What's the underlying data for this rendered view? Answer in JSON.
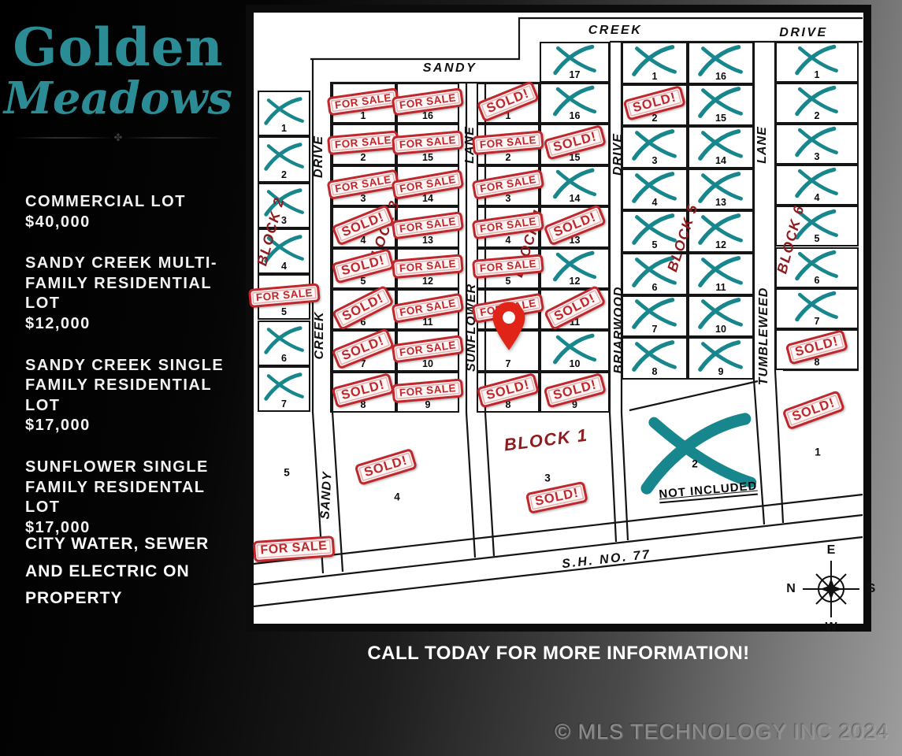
{
  "sidebar": {
    "logo_line1": "Golden",
    "logo_line2": "Meadows",
    "divider_ornament": "✤",
    "listings": [
      {
        "title": "COMMERCIAL LOT",
        "price": "$40,000"
      },
      {
        "title": "SANDY CREEK MULTI-FAMILY RESIDENTIAL LOT",
        "price": "$12,000"
      },
      {
        "title": "SANDY CREEK SINGLE FAMILY RESIDENTIAL LOT",
        "price": "$17,000"
      },
      {
        "title": "SUNFLOWER SINGLE FAMILY RESIDENTAL LOT",
        "price": "$17,000"
      }
    ],
    "utilities_note": "CITY WATER, SEWER AND ELECTRIC ON PROPERTY"
  },
  "map": {
    "stamp_labels": {
      "forsale": "FOR SALE",
      "sold": "SOLD!"
    },
    "roads": {
      "top": [
        "SANDY",
        "CREEK",
        "DRIVE"
      ],
      "sandy_creek_drive": [
        "DRIVE",
        "CREEK",
        "SANDY"
      ],
      "sunflower_lane": [
        "LANE",
        "SUNFLOWER"
      ],
      "briarwood_drive": [
        "DRIVE",
        "BRIARWOOD"
      ],
      "tumbleweed_lane": [
        "LANE",
        "TUMBLEWEED"
      ],
      "highway": "S.H. NO. 77"
    },
    "compass": {
      "top": "E",
      "left": "N",
      "right": "S",
      "bottom": "W"
    },
    "blocks": {
      "block1": {
        "label": "BLOCK 1"
      },
      "block2": {
        "label": "BLOCK 2",
        "lots": [
          {
            "n": "1",
            "s": "x"
          },
          {
            "n": "2",
            "s": "x"
          },
          {
            "n": "3",
            "s": "x"
          },
          {
            "n": "4",
            "s": "x"
          },
          {
            "n": "5",
            "s": "forsale"
          },
          {
            "n": "6",
            "s": "x"
          },
          {
            "n": "7",
            "s": "x"
          }
        ]
      },
      "block3": {
        "label": "BLOCK 3",
        "col_a": [
          {
            "n": "1",
            "s": "forsale"
          },
          {
            "n": "2",
            "s": "forsale"
          },
          {
            "n": "3",
            "s": "forsale"
          },
          {
            "n": "4",
            "s": "sold"
          },
          {
            "n": "5",
            "s": "sold"
          },
          {
            "n": "6",
            "s": "sold"
          },
          {
            "n": "7",
            "s": "sold"
          },
          {
            "n": "8",
            "s": "sold"
          }
        ],
        "col_b": [
          {
            "n": "16",
            "s": "forsale"
          },
          {
            "n": "15",
            "s": "forsale"
          },
          {
            "n": "14",
            "s": "forsale"
          },
          {
            "n": "13",
            "s": "forsale"
          },
          {
            "n": "12",
            "s": "forsale"
          },
          {
            "n": "11",
            "s": "forsale"
          },
          {
            "n": "10",
            "s": "forsale"
          },
          {
            "n": "9",
            "s": "forsale"
          }
        ]
      },
      "block4": {
        "label": "BLOCK 4",
        "top_lot": {
          "n": "17",
          "s": "x"
        },
        "col_a": [
          {
            "n": "1",
            "s": "sold"
          },
          {
            "n": "2",
            "s": "forsale"
          },
          {
            "n": "3",
            "s": "forsale"
          },
          {
            "n": "4",
            "s": "forsale"
          },
          {
            "n": "5",
            "s": "forsale"
          },
          {
            "n": "6",
            "s": "forsale"
          },
          {
            "n": "7",
            "s": "pin"
          },
          {
            "n": "8",
            "s": "sold"
          }
        ],
        "col_b": [
          {
            "n": "16",
            "s": "x"
          },
          {
            "n": "15",
            "s": "sold"
          },
          {
            "n": "14",
            "s": "x"
          },
          {
            "n": "13",
            "s": "sold"
          },
          {
            "n": "12",
            "s": "x"
          },
          {
            "n": "11",
            "s": "sold"
          },
          {
            "n": "10",
            "s": "x"
          },
          {
            "n": "9",
            "s": "sold"
          }
        ]
      },
      "block5": {
        "label": "BLOCK 5",
        "col_a": [
          {
            "n": "1",
            "s": "x"
          },
          {
            "n": "2",
            "s": "sold"
          },
          {
            "n": "3",
            "s": "x"
          },
          {
            "n": "4",
            "s": "x"
          },
          {
            "n": "5",
            "s": "x"
          },
          {
            "n": "6",
            "s": "x"
          },
          {
            "n": "7",
            "s": "x"
          },
          {
            "n": "8",
            "s": "x"
          }
        ],
        "col_b": [
          {
            "n": "16",
            "s": "x"
          },
          {
            "n": "15",
            "s": "x"
          },
          {
            "n": "14",
            "s": "x"
          },
          {
            "n": "13",
            "s": "x"
          },
          {
            "n": "12",
            "s": "x"
          },
          {
            "n": "11",
            "s": "x"
          },
          {
            "n": "10",
            "s": "x"
          },
          {
            "n": "9",
            "s": "x"
          }
        ]
      },
      "block6": {
        "label": "BLOCK 6",
        "lots": [
          {
            "n": "1",
            "s": "x"
          },
          {
            "n": "2",
            "s": "x"
          },
          {
            "n": "3",
            "s": "x"
          },
          {
            "n": "4",
            "s": "x"
          },
          {
            "n": "5",
            "s": "x"
          },
          {
            "n": "6",
            "s": "x"
          },
          {
            "n": "7",
            "s": "x"
          },
          {
            "n": "8",
            "s": "sold"
          }
        ]
      }
    },
    "bottom_lots": [
      {
        "n": "5",
        "s": "none",
        "corner_stamp": "forsale"
      },
      {
        "n": "4",
        "s": "sold"
      },
      {
        "n": "3",
        "s": "sold"
      },
      {
        "n": "2",
        "s": "x",
        "note": "NOT INCLUDED"
      },
      {
        "n": "1",
        "s": "sold"
      }
    ]
  },
  "footer": {
    "cta": "CALL TODAY FOR MORE INFORMATION!",
    "copyright": "© MLS TECHNOLOGY INC 2024"
  },
  "colors": {
    "logo_teal": "#2b8c96",
    "x_teal": "#17878d",
    "stamp_red": "#c0272d",
    "block_label_red": "#8e1b1e",
    "pin_red": "#e02417"
  }
}
